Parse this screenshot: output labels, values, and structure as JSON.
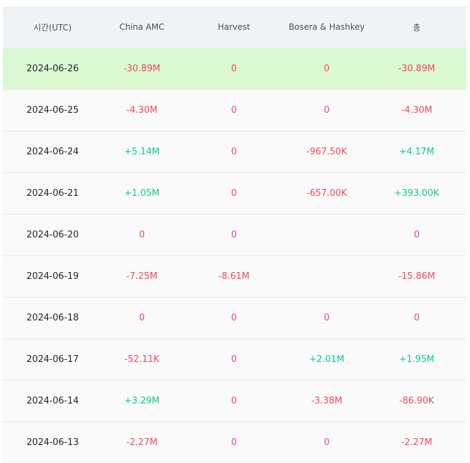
{
  "table": {
    "headers": [
      "시간(UTC)",
      "China AMC",
      "Harvest",
      "Bosera & Hashkey",
      "총"
    ],
    "rows": [
      {
        "date": "2024-06-26",
        "china_amc": "-30.89M",
        "harvest": "0",
        "bosera_hashkey": "0",
        "total": "-30.89M",
        "highlight": true
      },
      {
        "date": "2024-06-25",
        "china_amc": "-4.30M",
        "harvest": "0",
        "bosera_hashkey": "0",
        "total": "-4.30M"
      },
      {
        "date": "2024-06-24",
        "china_amc": "+5.14M",
        "harvest": "0",
        "bosera_hashkey": "-967.50K",
        "total": "+4.17M"
      },
      {
        "date": "2024-06-21",
        "china_amc": "+1.05M",
        "harvest": "0",
        "bosera_hashkey": "-657.00K",
        "total": "+393.00K"
      },
      {
        "date": "2024-06-20",
        "china_amc": "0",
        "harvest": "0",
        "bosera_hashkey": "",
        "total": "0"
      },
      {
        "date": "2024-06-19",
        "china_amc": "-7.25M",
        "harvest": "-8.61M",
        "bosera_hashkey": "",
        "total": "-15.86M"
      },
      {
        "date": "2024-06-18",
        "china_amc": "0",
        "harvest": "0",
        "bosera_hashkey": "0",
        "total": "0"
      },
      {
        "date": "2024-06-17",
        "china_amc": "-52.11K",
        "harvest": "0",
        "bosera_hashkey": "+2.01M",
        "total": "+1.95M"
      },
      {
        "date": "2024-06-14",
        "china_amc": "+3.29M",
        "harvest": "0",
        "bosera_hashkey": "-3.38M",
        "total": "-86.90K"
      },
      {
        "date": "2024-06-13",
        "china_amc": "-2.27M",
        "harvest": "0",
        "bosera_hashkey": "0",
        "total": "-2.27M"
      }
    ]
  },
  "colors": {
    "negative": "#f6465d",
    "positive": "#0ecb81",
    "highlight_row": "#dbfad3",
    "header_bg": "#f0f3f6"
  }
}
